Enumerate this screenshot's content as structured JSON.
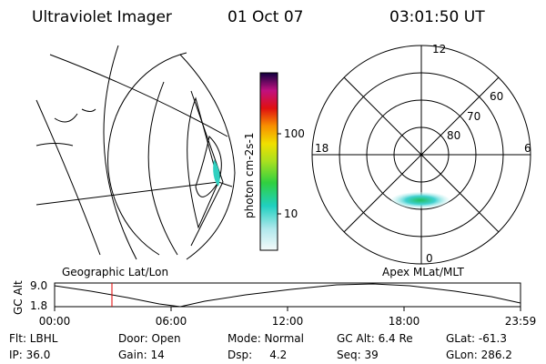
{
  "header": {
    "title": "Ultraviolet Imager",
    "date": "01 Oct 07",
    "time": "03:01:50 UT"
  },
  "colorbar": {
    "unit": "photon cm-2s-1",
    "ticks": [
      "100",
      "10"
    ]
  },
  "polar": {
    "mlt_labels": [
      "12",
      "0",
      "18",
      "6"
    ],
    "lat_labels": [
      "60",
      "70",
      "80"
    ]
  },
  "strip": {
    "left_title": "Geographic Lat/Lon",
    "right_title": "Apex MLat/MLT",
    "y_label": "GC Alt",
    "y_ticks": [
      "9.0",
      "1.8"
    ],
    "x_ticks": [
      "00:00",
      "06:00",
      "12:00",
      "18:00",
      "23:59"
    ]
  },
  "info": {
    "rows": [
      [
        "Flt: LBHL",
        "Door: Open",
        "Mode: Normal",
        "GC Alt: 6.4 Re",
        "GLat: -61.3"
      ],
      [
        "IP: 36.0",
        "Gain: 14",
        "Dsp:     4.2",
        "Seq: 39",
        "GLon: 286.2"
      ]
    ]
  }
}
